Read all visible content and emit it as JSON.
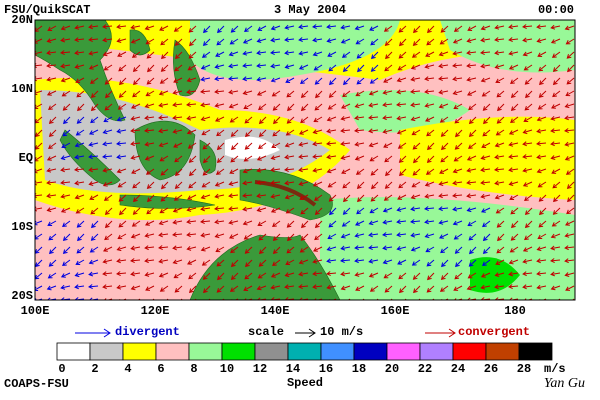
{
  "header": {
    "left": "FSU/QuikSCAT",
    "center": "3 May 2004",
    "right": "00:00"
  },
  "map": {
    "lat_labels": [
      "20N",
      "10N",
      "EQ",
      "10S",
      "20S"
    ],
    "lon_labels": [
      "100E",
      "120E",
      "140E",
      "160E",
      "180"
    ]
  },
  "legend": {
    "divergent": "divergent",
    "scale": "scale",
    "scale_value": "10 m/s",
    "convergent": "convergent"
  },
  "colorbar": {
    "ticks": [
      0,
      2,
      4,
      6,
      8,
      10,
      12,
      14,
      16,
      18,
      20,
      22,
      24,
      26,
      28
    ],
    "unit": "m/s",
    "title": "Speed",
    "colors": [
      "#ffffff",
      "#c8c8c8",
      "#ffff00",
      "#ffc0c0",
      "#98f898",
      "#00e000",
      "#909090",
      "#00b0b0",
      "#4090ff",
      "#0000c0",
      "#ff60ff",
      "#b080ff",
      "#ff0000",
      "#c04000",
      "#000000"
    ]
  },
  "footer": {
    "left": "COAPS-FSU",
    "right": "Yan Gu"
  }
}
